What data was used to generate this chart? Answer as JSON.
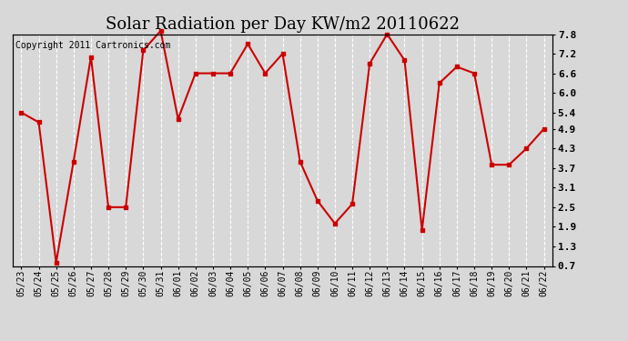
{
  "title": "Solar Radiation per Day KW/m2 20110622",
  "copyright_text": "Copyright 2011 Cartronics.com",
  "labels": [
    "05/23",
    "05/24",
    "05/25",
    "05/26",
    "05/27",
    "05/28",
    "05/29",
    "05/30",
    "05/31",
    "06/01",
    "06/02",
    "06/03",
    "06/04",
    "06/05",
    "06/06",
    "06/07",
    "06/08",
    "06/09",
    "06/10",
    "06/11",
    "06/12",
    "06/13",
    "06/14",
    "06/15",
    "06/16",
    "06/17",
    "06/18",
    "06/19",
    "06/20",
    "06/21",
    "06/22"
  ],
  "values": [
    5.4,
    5.1,
    0.8,
    3.9,
    7.1,
    2.5,
    2.5,
    7.3,
    7.9,
    5.2,
    6.6,
    6.6,
    6.6,
    7.5,
    6.6,
    7.2,
    3.9,
    2.7,
    2.0,
    2.6,
    6.9,
    7.8,
    7.0,
    1.8,
    6.3,
    6.8,
    6.6,
    3.8,
    3.8,
    4.3,
    4.9
  ],
  "line_color": "#cc0000",
  "marker": "s",
  "marker_size": 3,
  "line_width": 1.5,
  "ylim": [
    0.7,
    7.8
  ],
  "yticks": [
    0.7,
    1.3,
    1.9,
    2.5,
    3.1,
    3.7,
    4.3,
    4.9,
    5.4,
    6.0,
    6.6,
    7.2,
    7.8
  ],
  "background_color": "#d8d8d8",
  "plot_bg_color": "#d8d8d8",
  "grid_color": "#ffffff",
  "title_fontsize": 13,
  "copyright_fontsize": 7,
  "tick_fontsize": 7,
  "ytick_fontsize": 8
}
